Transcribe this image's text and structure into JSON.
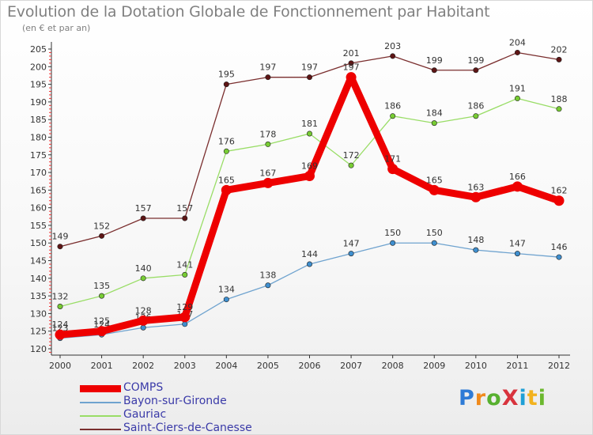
{
  "chart_data": {
    "type": "line",
    "title": "Evolution de la Dotation Globale de Fonctionnement par Habitant",
    "subtitle": "(en € et par an)",
    "xlabel": "",
    "ylabel": "",
    "categories": [
      "2000",
      "2001",
      "2002",
      "2003",
      "2004",
      "2005",
      "2006",
      "2007",
      "2008",
      "2009",
      "2010",
      "2011",
      "2012"
    ],
    "y_ticks": [
      120,
      125,
      130,
      135,
      140,
      145,
      150,
      155,
      160,
      165,
      170,
      175,
      180,
      185,
      190,
      195,
      200,
      205
    ],
    "ylim": [
      119,
      206
    ],
    "grid": false,
    "legend_position": "bottom-left",
    "series": [
      {
        "name": "COMPS",
        "color": "#ee0000",
        "emphasis": true,
        "values": [
          124,
          125,
          128,
          129,
          165,
          167,
          169,
          197,
          171,
          165,
          163,
          166,
          162
        ]
      },
      {
        "name": "Bayon-sur-Gironde",
        "color": "#6fa3cf",
        "marker": "#3f8fcf",
        "values": [
          123,
          124,
          126,
          127,
          134,
          138,
          144,
          147,
          150,
          150,
          148,
          147,
          146
        ]
      },
      {
        "name": "Gauriac",
        "color": "#99dd66",
        "marker": "#77cc33",
        "values": [
          132,
          135,
          140,
          141,
          176,
          178,
          181,
          172,
          186,
          184,
          186,
          191,
          188
        ]
      },
      {
        "name": "Saint-Ciers-de-Canesse",
        "color": "#7a2e2e",
        "marker": "#5e1515",
        "values": [
          149,
          152,
          157,
          157,
          195,
          197,
          197,
          201,
          203,
          199,
          199,
          204,
          202
        ]
      }
    ]
  },
  "brand": {
    "name": "ProXiti"
  },
  "colors": {
    "legend_text": "#3a3aa8",
    "title": "#808080"
  }
}
